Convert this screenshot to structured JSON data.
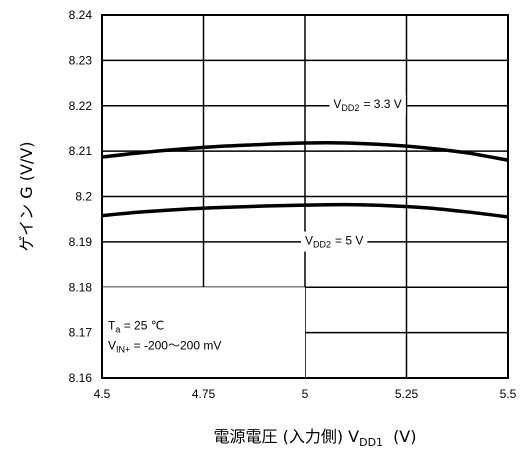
{
  "chart_data": {
    "type": "line",
    "xlabel": "電源電圧 (入力側) V",
    "xlabel_sub": "DD1",
    "xlabel_unit": "(V)",
    "ylabel": "ゲイン G (V/V)",
    "xlim": [
      4.5,
      5.5
    ],
    "ylim": [
      8.16,
      8.24
    ],
    "x_ticks": [
      "4.5",
      "4.75",
      "5",
      "5.25",
      "5.5"
    ],
    "y_ticks": [
      "8.16",
      "8.17",
      "8.18",
      "8.19",
      "8.2",
      "8.21",
      "8.22",
      "8.23",
      "8.24"
    ],
    "grid": true,
    "series": [
      {
        "label_main": "V",
        "label_sub": "DD2",
        "label_value": "= 3.3 V",
        "x": [
          4.5,
          4.6,
          4.7,
          4.8,
          4.9,
          5.0,
          5.1,
          5.2,
          5.3,
          5.4,
          5.5
        ],
        "y": [
          8.2087,
          8.2097,
          8.2105,
          8.2111,
          8.2115,
          8.2118,
          8.2118,
          8.2114,
          8.2107,
          8.2096,
          8.208
        ]
      },
      {
        "label_main": "V",
        "label_sub": "DD2",
        "label_value": "= 5 V",
        "x": [
          4.5,
          4.6,
          4.7,
          4.8,
          4.9,
          5.0,
          5.1,
          5.2,
          5.3,
          5.4,
          5.5
        ],
        "y": [
          8.1958,
          8.1966,
          8.1972,
          8.1976,
          8.1979,
          8.1981,
          8.1982,
          8.198,
          8.1975,
          8.1966,
          8.1955
        ]
      }
    ],
    "conditions": [
      {
        "main": "T",
        "sub": "a",
        "rest": " = 25 ℃"
      },
      {
        "main": "V",
        "sub": "IN+",
        "rest": " = -200～200 mV"
      }
    ]
  }
}
